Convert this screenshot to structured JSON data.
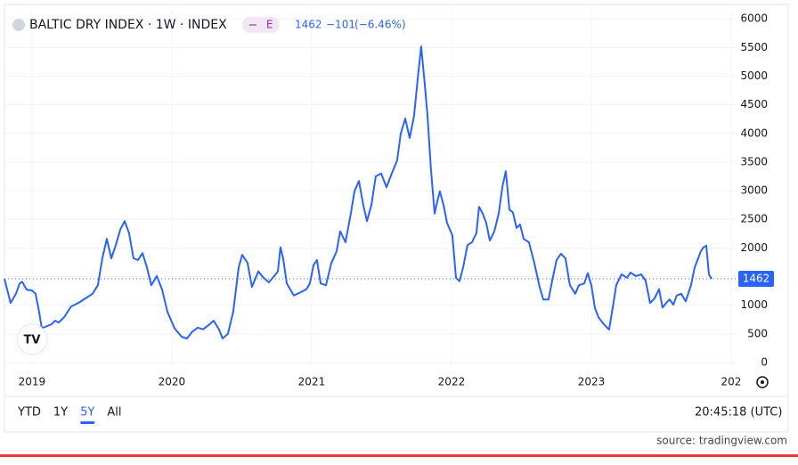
{
  "header": {
    "title": "BALTIC DRY INDEX · 1W · INDEX",
    "badge": "E",
    "last": 1462,
    "change": "−101",
    "change_pct": "(−6.46%)"
  },
  "chart_data": {
    "type": "line",
    "color": "#2962ff",
    "grid": true,
    "x": [
      2018.803,
      2018.847,
      2018.885,
      2018.911,
      2018.93,
      2018.962,
      2019.0,
      2019.025,
      2019.051,
      2019.07,
      2019.102,
      2019.14,
      2019.166,
      2019.191,
      2019.229,
      2019.28,
      2019.331,
      2019.382,
      2019.433,
      2019.471,
      2019.503,
      2019.535,
      2019.567,
      2019.599,
      2019.631,
      2019.662,
      2019.694,
      2019.726,
      2019.758,
      2019.79,
      2019.822,
      2019.853,
      2019.892,
      2019.93,
      2019.968,
      2020.019,
      2020.07,
      2020.108,
      2020.146,
      2020.185,
      2020.223,
      2020.261,
      2020.299,
      2020.338,
      2020.363,
      2020.401,
      2020.439,
      2020.478,
      2020.503,
      2020.541,
      2020.573,
      2020.618,
      2020.656,
      2020.694,
      2020.732,
      2020.758,
      2020.777,
      2020.796,
      2020.822,
      2020.873,
      2020.924,
      2020.962,
      2020.987,
      2021.013,
      2021.038,
      2021.064,
      2021.102,
      2021.14,
      2021.178,
      2021.204,
      2021.242,
      2021.28,
      2021.306,
      2021.338,
      2021.369,
      2021.395,
      2021.427,
      2021.458,
      2021.497,
      2021.535,
      2021.573,
      2021.611,
      2021.637,
      2021.669,
      2021.701,
      2021.732,
      2021.764,
      2021.783,
      2021.809,
      2021.828,
      2021.853,
      2021.879,
      2021.892,
      2021.917,
      2021.943,
      2021.968,
      2022.006,
      2022.032,
      2022.057,
      2022.083,
      2022.114,
      2022.146,
      2022.178,
      2022.197,
      2022.223,
      2022.248,
      2022.274,
      2022.306,
      2022.338,
      2022.363,
      2022.388,
      2022.414,
      2022.439,
      2022.465,
      2022.49,
      2022.516,
      2022.554,
      2022.592,
      2022.63,
      2022.656,
      2022.694,
      2022.72,
      2022.751,
      2022.783,
      2022.815,
      2022.847,
      2022.885,
      2022.911,
      2022.949,
      2022.974,
      2023.0,
      2023.025,
      2023.051,
      2023.089,
      2023.127,
      2023.153,
      2023.178,
      2023.216,
      2023.255,
      2023.28,
      2023.318,
      2023.356,
      2023.388,
      2023.42,
      2023.452,
      2023.484,
      2023.509,
      2023.535,
      2023.56,
      2023.586,
      2023.611,
      2023.643,
      2023.675,
      2023.713,
      2023.739,
      2023.764,
      2023.783,
      2023.802,
      2023.822,
      2023.841,
      2023.86
    ],
    "values": [
      1460,
      1040,
      1200,
      1380,
      1410,
      1270,
      1260,
      1200,
      890,
      600,
      630,
      670,
      730,
      700,
      790,
      980,
      1040,
      1120,
      1200,
      1350,
      1820,
      2160,
      1820,
      2050,
      2320,
      2470,
      2260,
      1820,
      1790,
      1910,
      1660,
      1350,
      1510,
      1280,
      890,
      600,
      450,
      420,
      540,
      610,
      580,
      650,
      730,
      575,
      420,
      500,
      890,
      1660,
      1880,
      1740,
      1320,
      1590,
      1480,
      1400,
      1510,
      1590,
      2010,
      1820,
      1380,
      1170,
      1230,
      1280,
      1380,
      1700,
      1790,
      1380,
      1350,
      1730,
      1940,
      2290,
      2100,
      2600,
      2990,
      3170,
      2750,
      2470,
      2750,
      3250,
      3300,
      3060,
      3300,
      3530,
      4000,
      4260,
      3920,
      4310,
      5090,
      5520,
      4850,
      4310,
      3370,
      2600,
      2750,
      2990,
      2750,
      2440,
      2220,
      1480,
      1420,
      1660,
      2050,
      2100,
      2260,
      2720,
      2600,
      2440,
      2130,
      2290,
      2600,
      3060,
      3340,
      2670,
      2620,
      2350,
      2410,
      2160,
      2100,
      1740,
      1320,
      1100,
      1100,
      1430,
      1790,
      1900,
      1820,
      1350,
      1200,
      1350,
      1380,
      1560,
      1350,
      960,
      790,
      670,
      575,
      960,
      1350,
      1540,
      1480,
      1570,
      1510,
      1540,
      1430,
      1040,
      1120,
      1280,
      960,
      1040,
      1100,
      1010,
      1170,
      1200,
      1070,
      1350,
      1660,
      1820,
      1940,
      2010,
      2040,
      1540,
      1462
    ],
    "xlim": [
      2018.803,
      2024.032
    ],
    "xticks": [
      2019,
      2020,
      2021,
      2022,
      2023,
      {
        "value": 2024,
        "label": "202"
      }
    ],
    "ylim": [
      -47,
      6174
    ],
    "yticks": [
      0,
      500,
      1000,
      1500,
      2000,
      2500,
      3000,
      3500,
      4000,
      4500,
      5000,
      5500,
      6000
    ]
  },
  "toolbar": {
    "ranges": [
      "YTD",
      "1Y",
      "5Y",
      "All"
    ],
    "active": 2,
    "clock": "20:45:18 (UTC)"
  },
  "source": "source: tradingview.com"
}
